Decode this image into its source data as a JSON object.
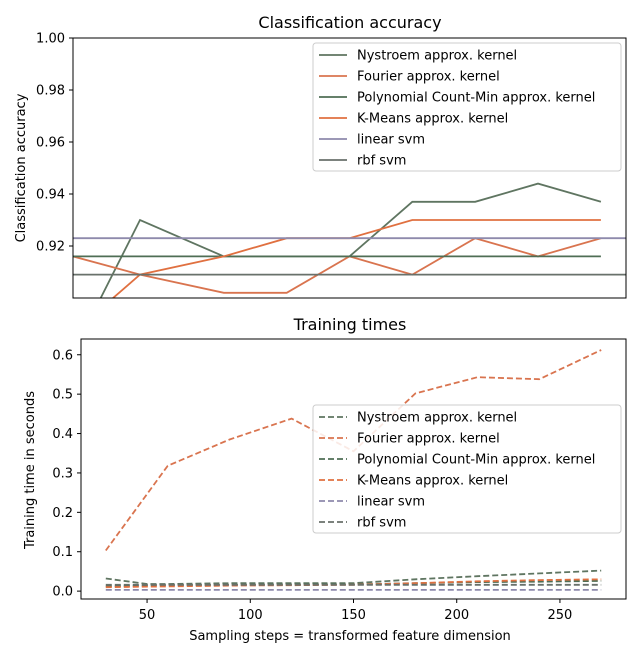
{
  "chart_data": [
    {
      "type": "line",
      "title": "Classification accuracy",
      "xlabel": "",
      "ylabel": "Classification accuracy",
      "xlim": [
        18,
        282
      ],
      "ylim": [
        0.9,
        1.0
      ],
      "yticks": [
        "0.92",
        "0.94",
        "0.96",
        "0.98",
        "1.00"
      ],
      "yticks_values": [
        0.92,
        0.94,
        0.96,
        0.98,
        1.0
      ],
      "legend_position": "top-right",
      "series": [
        {
          "name": "Nystroem approx. kernel",
          "color": "#5f7561",
          "dash": "solid",
          "x": [
            30,
            50,
            90,
            120,
            150,
            180,
            210,
            240,
            270
          ],
          "y": [
            0.898,
            0.93,
            0.916,
            0.916,
            0.916,
            0.937,
            0.937,
            0.944,
            0.937
          ]
        },
        {
          "name": "Fourier approx. kernel",
          "color": "#d9744f",
          "dash": "solid",
          "x": [
            18,
            50,
            90,
            120,
            150,
            180,
            210,
            240,
            270
          ],
          "y": [
            0.916,
            0.909,
            0.902,
            0.902,
            0.916,
            0.909,
            0.923,
            0.916,
            0.923
          ]
        },
        {
          "name": "Polynomial Count-Min approx. kernel",
          "color": "#4f6e55",
          "dash": "solid",
          "x": [
            18,
            50,
            90,
            120,
            150,
            180,
            210,
            240,
            270
          ],
          "y": [
            0.916,
            0.916,
            0.916,
            0.916,
            0.916,
            0.916,
            0.916,
            0.916,
            0.916
          ]
        },
        {
          "name": "K-Means approx. kernel",
          "color": "#e07040",
          "dash": "solid",
          "x": [
            30,
            50,
            90,
            120,
            150,
            180,
            210,
            240,
            270
          ],
          "y": [
            0.895,
            0.909,
            0.916,
            0.923,
            0.923,
            0.93,
            0.93,
            0.93,
            0.93
          ]
        },
        {
          "name": "linear svm",
          "color": "#8e8aac",
          "dash": "solid",
          "x": [
            18,
            282
          ],
          "y": [
            0.923,
            0.923
          ]
        },
        {
          "name": "rbf svm",
          "color": "#69716b",
          "dash": "solid",
          "x": [
            18,
            282
          ],
          "y": [
            0.909,
            0.909
          ]
        }
      ]
    },
    {
      "type": "line",
      "title": "Training times",
      "xlabel": "Sampling steps = transformed feature dimension",
      "ylabel": "Training time in seconds",
      "xlim": [
        18,
        282
      ],
      "ylim": [
        -0.02,
        0.64
      ],
      "xticks": [
        "50",
        "100",
        "150",
        "200",
        "250"
      ],
      "xticks_values": [
        50,
        100,
        150,
        200,
        250
      ],
      "yticks": [
        "0.0",
        "0.1",
        "0.2",
        "0.3",
        "0.4",
        "0.5",
        "0.6"
      ],
      "yticks_values": [
        0.0,
        0.1,
        0.2,
        0.3,
        0.4,
        0.5,
        0.6
      ],
      "legend_position": "center-right",
      "series": [
        {
          "name": "Nystroem approx. kernel",
          "color": "#5f7561",
          "dash": "dashed",
          "x": [
            30,
            50,
            60,
            90,
            120,
            150,
            180,
            210,
            240,
            270
          ],
          "y": [
            0.032,
            0.018,
            0.018,
            0.02,
            0.02,
            0.02,
            0.03,
            0.038,
            0.045,
            0.052
          ]
        },
        {
          "name": "Fourier approx. kernel",
          "color": "#d9744f",
          "dash": "dashed",
          "x": [
            30,
            60,
            90,
            120,
            150,
            180,
            210,
            240,
            270
          ],
          "y": [
            0.103,
            0.318,
            0.385,
            0.438,
            0.355,
            0.502,
            0.543,
            0.538,
            0.612
          ]
        },
        {
          "name": "Polynomial Count-Min approx. kernel",
          "color": "#4f6e55",
          "dash": "dashed",
          "x": [
            30,
            60,
            90,
            120,
            150,
            180,
            210,
            240,
            270
          ],
          "y": [
            0.012,
            0.015,
            0.016,
            0.017,
            0.017,
            0.02,
            0.023,
            0.024,
            0.026
          ]
        },
        {
          "name": "K-Means approx. kernel",
          "color": "#e07040",
          "dash": "dashed",
          "x": [
            30,
            60,
            90,
            120,
            150,
            180,
            210,
            240,
            270
          ],
          "y": [
            0.01,
            0.012,
            0.014,
            0.015,
            0.016,
            0.02,
            0.025,
            0.028,
            0.03
          ]
        },
        {
          "name": "linear svm",
          "color": "#8e8aac",
          "dash": "dashed",
          "x": [
            30,
            270
          ],
          "y": [
            0.003,
            0.003
          ]
        },
        {
          "name": "rbf svm",
          "color": "#69716b",
          "dash": "dashed",
          "x": [
            30,
            270
          ],
          "y": [
            0.016,
            0.016
          ]
        }
      ]
    }
  ]
}
